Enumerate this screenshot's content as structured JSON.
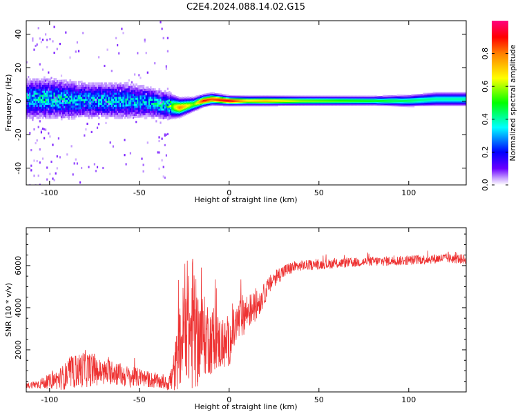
{
  "title": "C2E4.2024.088.14.02.G15",
  "chart_data": [
    {
      "type": "heatmap",
      "name": "spectrogram",
      "xlabel": "Height of straight line (km)",
      "ylabel": "Frequency (Hz)",
      "xlim": [
        -113,
        132
      ],
      "ylim": [
        -50,
        48
      ],
      "xticks": [
        -100,
        -50,
        0,
        50,
        100
      ],
      "yticks": [
        -40,
        -20,
        0,
        20,
        40
      ],
      "colorbar": {
        "label": "Normalized spectral amplitude",
        "range": [
          0.0,
          1.0
        ],
        "ticks": [
          0.0,
          0.2,
          0.4,
          0.6,
          0.8
        ]
      },
      "ridge": {
        "x": [
          -113,
          -100,
          -80,
          -60,
          -45,
          -35,
          -28,
          -20,
          -15,
          -10,
          0,
          10,
          20,
          40,
          60,
          80,
          100,
          115,
          132
        ],
        "frequency": [
          1,
          1,
          0,
          0,
          -1,
          -3,
          -4,
          -2,
          0,
          1,
          0,
          0,
          0,
          0,
          0,
          0,
          0,
          1,
          1
        ],
        "amplitude": [
          0.3,
          0.35,
          0.3,
          0.3,
          0.3,
          0.35,
          0.8,
          0.55,
          0.9,
          0.85,
          0.95,
          0.7,
          0.75,
          0.6,
          0.55,
          0.5,
          0.45,
          0.4,
          0.4
        ],
        "spread_hz": [
          9,
          9,
          8,
          8,
          7,
          6,
          4,
          3,
          2.5,
          2.5,
          2,
          2,
          2,
          2,
          2,
          2,
          2.5,
          3,
          3
        ]
      }
    },
    {
      "type": "line",
      "name": "snr",
      "xlabel": "Height of straight line (km)",
      "ylabel": "SNR (10 * v/v)",
      "xlim": [
        -113,
        132
      ],
      "ylim": [
        0,
        7800
      ],
      "xticks": [
        -100,
        -50,
        0,
        50,
        100
      ],
      "yticks": [
        2000,
        4000,
        6000
      ],
      "color": "#ee3333",
      "series": [
        {
          "name": "SNR",
          "x": [
            -113,
            -105,
            -100,
            -95,
            -90,
            -85,
            -80,
            -75,
            -70,
            -65,
            -60,
            -55,
            -50,
            -45,
            -40,
            -35,
            -32,
            -30,
            -28,
            -26,
            -24,
            -22,
            -20,
            -18,
            -15,
            -12,
            -10,
            -8,
            -5,
            -2,
            0,
            2,
            5,
            8,
            10,
            12,
            15,
            18,
            20,
            22,
            25,
            30,
            35,
            40,
            50,
            60,
            70,
            80,
            90,
            100,
            110,
            120,
            132
          ],
          "y": [
            300,
            400,
            500,
            600,
            800,
            1000,
            1100,
            1000,
            900,
            1000,
            800,
            700,
            700,
            600,
            500,
            400,
            600,
            1200,
            2000,
            2600,
            3400,
            2600,
            3400,
            2500,
            2700,
            2600,
            2400,
            2500,
            2300,
            2200,
            2300,
            2800,
            3300,
            3700,
            3800,
            3900,
            4100,
            4400,
            4700,
            5000,
            5400,
            5700,
            5900,
            6000,
            6050,
            6100,
            6150,
            6200,
            6220,
            6250,
            6300,
            6350,
            6300
          ],
          "amplitude": [
            120,
            250,
            350,
            500,
            700,
            800,
            900,
            700,
            600,
            650,
            550,
            500,
            450,
            400,
            350,
            300,
            700,
            1200,
            1800,
            2400,
            2600,
            2800,
            3400,
            2400,
            2000,
            1800,
            1600,
            1500,
            1300,
            1200,
            1100,
            1100,
            1050,
            1000,
            900,
            800,
            700,
            600,
            500,
            450,
            400,
            350,
            300,
            250,
            230,
            230,
            230,
            230,
            230,
            230,
            230,
            230,
            230
          ]
        }
      ]
    }
  ]
}
